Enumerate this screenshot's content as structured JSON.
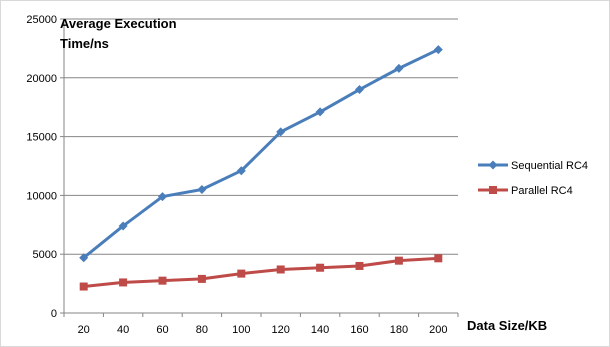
{
  "chart_data": {
    "type": "line",
    "ylabel": "Average Execution Time/ns",
    "ylabel_lines": [
      "Average Execution",
      "Time/ns"
    ],
    "xlabel": "Data Size/KB",
    "x": [
      20,
      40,
      60,
      80,
      100,
      120,
      140,
      160,
      180,
      200
    ],
    "categories": [
      "20",
      "40",
      "60",
      "80",
      "100",
      "120",
      "140",
      "160",
      "180",
      "200"
    ],
    "ylim": [
      0,
      25000
    ],
    "yticks": [
      0,
      5000,
      10000,
      15000,
      20000,
      25000
    ],
    "ytick_labels": [
      "0",
      "5000",
      "10000",
      "15000",
      "20000",
      "25000"
    ],
    "grid": "horizontal",
    "legend_position": "right",
    "series": [
      {
        "name": "Sequential RC4",
        "color": "#4a7ebb",
        "marker": "diamond",
        "values": [
          4700,
          7400,
          9900,
          10500,
          12100,
          15400,
          17100,
          19000,
          20800,
          22400
        ]
      },
      {
        "name": "Parallel RC4",
        "color": "#be4b48",
        "marker": "square",
        "values": [
          2250,
          2600,
          2750,
          2900,
          3350,
          3700,
          3850,
          4000,
          4450,
          4650
        ]
      }
    ]
  }
}
